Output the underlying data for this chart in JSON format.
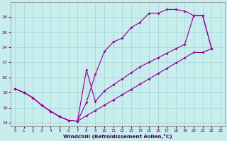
{
  "bg_color": "#c8eded",
  "grid_color": "#a0d4d4",
  "line_color": "#990099",
  "xlabel": "Windchill (Refroidissement éolien,°C)",
  "xlim": [
    -0.5,
    23.5
  ],
  "ylim": [
    13.5,
    30.0
  ],
  "xticks": [
    0,
    1,
    2,
    3,
    4,
    5,
    6,
    7,
    8,
    9,
    10,
    11,
    12,
    13,
    14,
    15,
    16,
    17,
    18,
    19,
    20,
    21,
    22,
    23
  ],
  "yticks": [
    14,
    16,
    18,
    20,
    22,
    24,
    26,
    28
  ],
  "line1_x": [
    0,
    1,
    2,
    3,
    4,
    5,
    6,
    7,
    8,
    9,
    10,
    11,
    12,
    13,
    14,
    15,
    16,
    17,
    18,
    19,
    20,
    21,
    22
  ],
  "line1_y": [
    18.5,
    18.0,
    17.3,
    16.3,
    15.5,
    14.8,
    14.3,
    14.2,
    16.7,
    20.4,
    23.4,
    24.7,
    25.2,
    26.6,
    27.3,
    28.5,
    28.5,
    29.0,
    29.0,
    28.8,
    28.2,
    28.2,
    23.8
  ],
  "line2_x": [
    0,
    1,
    2,
    3,
    4,
    5,
    6,
    7,
    8,
    9,
    10,
    11,
    12,
    13,
    14,
    15,
    16,
    17,
    18,
    19,
    20,
    21,
    22
  ],
  "line2_y": [
    18.5,
    18.0,
    17.3,
    16.3,
    15.5,
    14.8,
    14.3,
    14.2,
    21.0,
    16.8,
    18.2,
    19.0,
    19.8,
    20.6,
    21.4,
    22.0,
    22.6,
    23.2,
    23.8,
    24.4,
    28.2,
    28.2,
    23.8
  ],
  "line3_x": [
    0,
    1,
    2,
    3,
    4,
    5,
    6,
    7,
    8,
    9,
    10,
    11,
    12,
    13,
    14,
    15,
    16,
    17,
    18,
    19,
    20,
    21,
    22
  ],
  "line3_y": [
    18.5,
    18.0,
    17.3,
    16.3,
    15.5,
    14.8,
    14.3,
    14.2,
    14.9,
    15.6,
    16.3,
    17.0,
    17.7,
    18.4,
    19.1,
    19.8,
    20.5,
    21.2,
    21.9,
    22.6,
    23.3,
    23.3,
    23.8
  ]
}
